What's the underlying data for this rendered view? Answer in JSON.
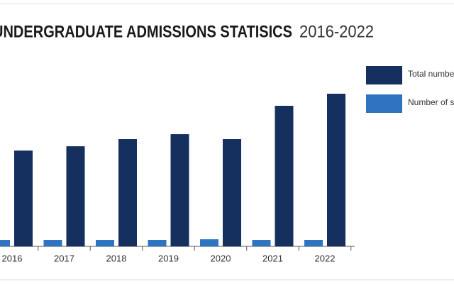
{
  "chart_data": {
    "type": "bar",
    "title": "UNDERGRADUATE ADMISSIONS STATISICS",
    "subtitle": "2016-2022",
    "categories": [
      "2016",
      "2017",
      "2018",
      "2019",
      "2020",
      "2021",
      "2022"
    ],
    "series": [
      {
        "name": "Total number",
        "color": "#15305f",
        "values": [
          135,
          141,
          151,
          158,
          151,
          198,
          215
        ]
      },
      {
        "name": "Number of stu",
        "color": "#2f74c0",
        "values": [
          9,
          9,
          9,
          9,
          10,
          9,
          9
        ]
      }
    ],
    "ylim": [
      0,
      240
    ]
  }
}
